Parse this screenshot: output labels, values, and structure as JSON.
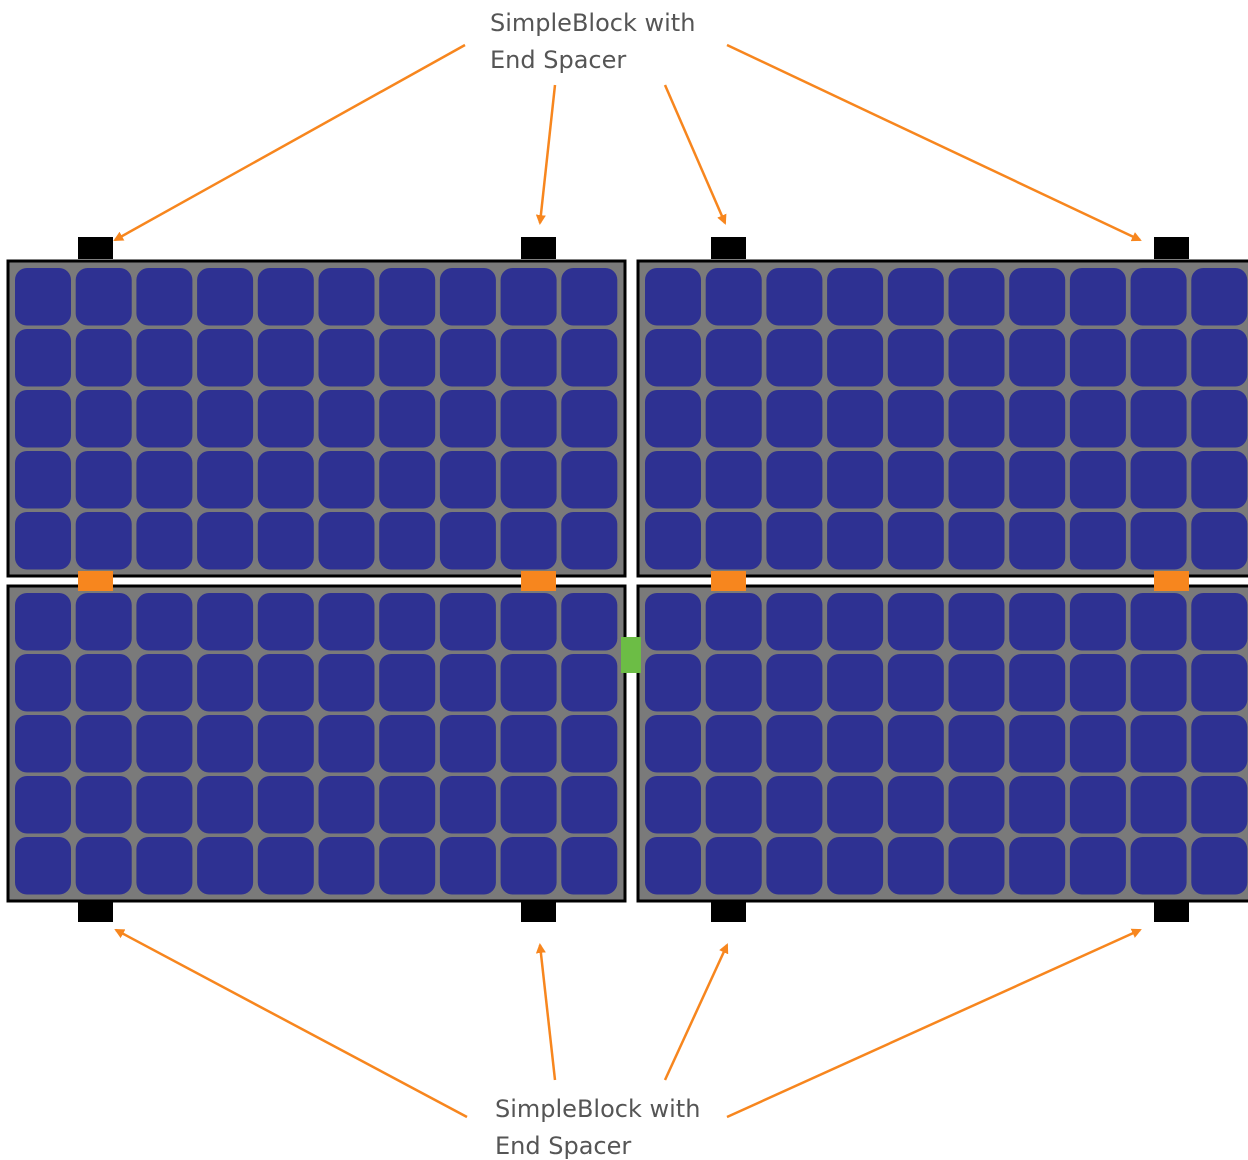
{
  "labels": {
    "top": {
      "line1": "SimpleBlock with",
      "line2": "End Spacer"
    },
    "bottom": {
      "line1": "SimpleBlock with",
      "line2": "End Spacer"
    }
  },
  "colors": {
    "frame": "#7a7a7a",
    "cell": "#2e3192",
    "border": "#000000",
    "clamp": "#000000",
    "spacer": "#f7861e",
    "joiner": "#6cbd45",
    "arrow": "#f7861e",
    "label": "#555555"
  },
  "panels": {
    "rows": 2,
    "columns": 2,
    "cells_per_row": 10,
    "cell_rows": 5
  }
}
